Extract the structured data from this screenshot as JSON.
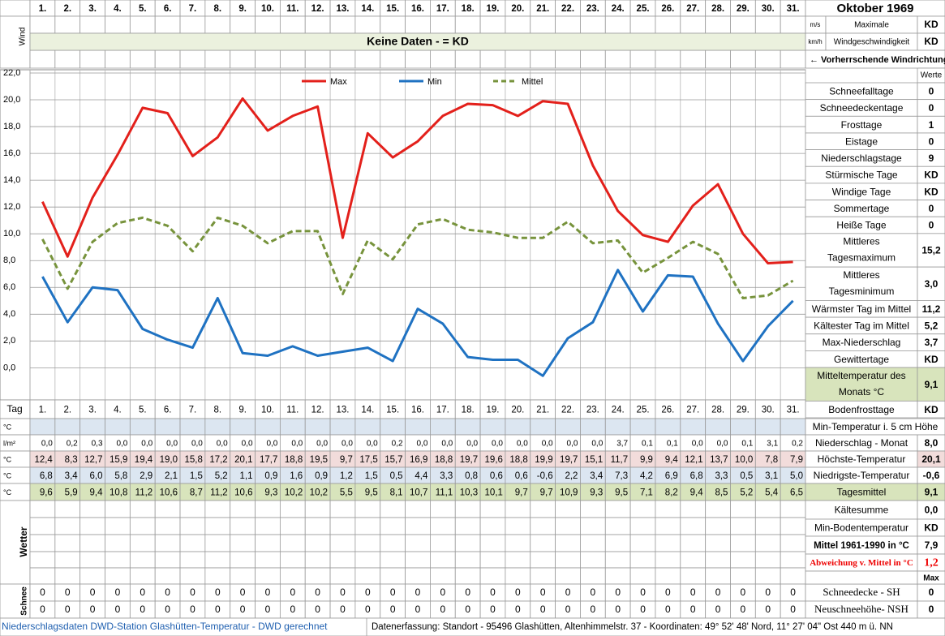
{
  "header": {
    "month": "Oktober 1969",
    "wind_label": "Wind",
    "units": [
      "m/s",
      "km/h"
    ],
    "wind_speed_label": [
      "Maximale",
      "Windgeschwindigkeit"
    ],
    "wind_speed_values": [
      "KD",
      "KD"
    ],
    "no_data": "Keine Daten -  = KD",
    "wind_direction": "← Vorherrschende Windrichtung",
    "values_heading": "Werte"
  },
  "chart_data": {
    "type": "line",
    "categories": [
      "1.",
      "2.",
      "3.",
      "4.",
      "5.",
      "6.",
      "7.",
      "8.",
      "9.",
      "10.",
      "11.",
      "12.",
      "13.",
      "14.",
      "15.",
      "16.",
      "17.",
      "18.",
      "19.",
      "20.",
      "21.",
      "22.",
      "23.",
      "24.",
      "25.",
      "26.",
      "27.",
      "28.",
      "29.",
      "30.",
      "31."
    ],
    "ylim": [
      -2.4,
      22
    ],
    "yticks": [
      {
        "value": 0,
        "label": "0,0"
      },
      {
        "value": 2,
        "label": "2,0"
      },
      {
        "value": 4,
        "label": "4,0"
      },
      {
        "value": 6,
        "label": "6,0"
      },
      {
        "value": 8,
        "label": "8,0"
      },
      {
        "value": 10,
        "label": "10,0"
      },
      {
        "value": 12,
        "label": "12,0"
      },
      {
        "value": 14,
        "label": "14,0"
      },
      {
        "value": 16,
        "label": "16,0"
      },
      {
        "value": 18,
        "label": "18,0"
      },
      {
        "value": 20,
        "label": "20,0"
      },
      {
        "value": 22,
        "label": "22,0"
      }
    ],
    "grid": true,
    "legend": "top",
    "series": [
      {
        "name": "Max",
        "color": "#e3201b",
        "dash": false,
        "values": [
          12.4,
          8.3,
          12.7,
          15.9,
          19.4,
          19.0,
          15.8,
          17.2,
          20.1,
          17.7,
          18.8,
          19.5,
          9.7,
          17.5,
          15.7,
          16.9,
          18.8,
          19.7,
          19.6,
          18.8,
          19.9,
          19.7,
          15.1,
          11.7,
          9.9,
          9.4,
          12.1,
          13.7,
          10.0,
          7.8,
          7.9
        ],
        "value_labels": [
          "12,4",
          "8,3",
          "12,7",
          "15,9",
          "19,4",
          "19,0",
          "15,8",
          "17,2",
          "20,1",
          "17,7",
          "18,8",
          "19,5",
          "9,7",
          "17,5",
          "15,7",
          "16,9",
          "18,8",
          "19,7",
          "19,6",
          "18,8",
          "19,9",
          "19,7",
          "15,1",
          "11,7",
          "9,9",
          "9,4",
          "12,1",
          "13,7",
          "10,0",
          "7,8",
          "7,9"
        ]
      },
      {
        "name": "Min",
        "color": "#1f72c2",
        "dash": false,
        "values": [
          6.8,
          3.4,
          6.0,
          5.8,
          2.9,
          2.1,
          1.5,
          5.2,
          1.1,
          0.9,
          1.6,
          0.9,
          1.2,
          1.5,
          0.5,
          4.4,
          3.3,
          0.8,
          0.6,
          0.6,
          -0.6,
          2.2,
          3.4,
          7.3,
          4.2,
          6.9,
          6.8,
          3.3,
          0.5,
          3.1,
          5.0
        ],
        "value_labels": [
          "6,8",
          "3,4",
          "6,0",
          "5,8",
          "2,9",
          "2,1",
          "1,5",
          "5,2",
          "1,1",
          "0,9",
          "1,6",
          "0,9",
          "1,2",
          "1,5",
          "0,5",
          "4,4",
          "3,3",
          "0,8",
          "0,6",
          "0,6",
          "-0,6",
          "2,2",
          "3,4",
          "7,3",
          "4,2",
          "6,9",
          "6,8",
          "3,3",
          "0,5",
          "3,1",
          "5,0"
        ]
      },
      {
        "name": "Mittel",
        "color": "#77933c",
        "dash": true,
        "values": [
          9.6,
          5.9,
          9.4,
          10.8,
          11.2,
          10.6,
          8.7,
          11.2,
          10.6,
          9.3,
          10.2,
          10.2,
          5.5,
          9.5,
          8.1,
          10.7,
          11.1,
          10.3,
          10.1,
          9.7,
          9.7,
          10.9,
          9.3,
          9.5,
          7.1,
          8.2,
          9.4,
          8.5,
          5.2,
          5.4,
          6.5
        ],
        "value_labels": [
          "9,6",
          "5,9",
          "9,4",
          "10,8",
          "11,2",
          "10,6",
          "8,7",
          "11,2",
          "10,6",
          "9,3",
          "10,2",
          "10,2",
          "5,5",
          "9,5",
          "8,1",
          "10,7",
          "11,1",
          "10,3",
          "10,1",
          "9,7",
          "9,7",
          "10,9",
          "9,3",
          "9,5",
          "7,1",
          "8,2",
          "9,4",
          "8,5",
          "5,2",
          "5,4",
          "6,5"
        ]
      }
    ]
  },
  "stats": [
    {
      "label": "Schneefalltage",
      "value": "0"
    },
    {
      "label": "Schneedeckentage",
      "value": "0"
    },
    {
      "label": "Frosttage",
      "value": "1"
    },
    {
      "label": "Eistage",
      "value": "0"
    },
    {
      "label": "Niederschlagstage",
      "value": "9"
    },
    {
      "label": "Stürmische Tage",
      "value": "KD"
    },
    {
      "label": "Windige Tage",
      "value": "KD"
    },
    {
      "label": "Sommertage",
      "value": "0"
    },
    {
      "label": "Heiße Tage",
      "value": "0"
    },
    {
      "label": [
        "Mittleres",
        "Tagesmaximum"
      ],
      "value": "15,2"
    },
    {
      "label": [
        "Mittleres",
        "Tagesminimum"
      ],
      "value": "3,0"
    },
    {
      "label": "Wärmster Tag im Mittel",
      "value": "11,2"
    },
    {
      "label": "Kältester Tag im Mittel",
      "value": "5,2"
    },
    {
      "label": "Max-Niederschlag",
      "value": "3,7"
    },
    {
      "label": "Gewittertage",
      "value": "KD"
    },
    {
      "label": [
        "Mitteltemperatur des",
        "Monats °C"
      ],
      "value": "9,1"
    },
    {
      "label": "Bodenfrosttage",
      "value": "KD"
    }
  ],
  "table": {
    "day_label": "Tag",
    "rows": [
      {
        "unit": "°C"
      },
      {
        "unit": "l/m²",
        "values": [
          "0,0",
          "0,2",
          "0,3",
          "0,0",
          "0,0",
          "0,0",
          "0,0",
          "0,0",
          "0,0",
          "0,0",
          "0,0",
          "0,0",
          "0,0",
          "0,0",
          "0,2",
          "0,0",
          "0,0",
          "0,0",
          "0,0",
          "0,0",
          "0,0",
          "0,0",
          "0,0",
          "3,7",
          "0,1",
          "0,1",
          "0,0",
          "0,0",
          "0,1",
          "3,1",
          "0,2"
        ]
      },
      {
        "unit": "°C"
      },
      {
        "unit": "°C"
      },
      {
        "unit": "°C"
      }
    ]
  },
  "summary": [
    {
      "label": "Min-Temperatur i. 5 cm Höhe"
    },
    {
      "label": "Niederschlag - Monat",
      "value": "8,0"
    },
    {
      "label": "Höchste-Temperatur",
      "value": "20,1"
    },
    {
      "label": "Niedrigste-Temperatur",
      "value": "-0,6"
    },
    {
      "label": "Tagesmittel",
      "value": "9,1"
    },
    {
      "label": "Kältesumme",
      "value": "0,0"
    },
    {
      "label": "Min-Bodentemperatur",
      "value": "KD"
    },
    {
      "label": "Mittel 1961-1990 in °C",
      "value": "7,9"
    },
    {
      "label": "Abweichung v. Mittel in °C",
      "value": "1,2"
    },
    {
      "value": "Max"
    }
  ],
  "weather_label": "Wetter",
  "snow_label": "Schnee",
  "snow_rows": [
    {
      "label": "Schneedecke -  SH",
      "value": "0",
      "days": [
        0,
        0,
        0,
        0,
        0,
        0,
        0,
        0,
        0,
        0,
        0,
        0,
        0,
        0,
        0,
        0,
        0,
        0,
        0,
        0,
        0,
        0,
        0,
        0,
        0,
        0,
        0,
        0,
        0,
        0,
        0
      ]
    },
    {
      "label": "Neuschneehöhe- NSH",
      "value": "0",
      "days": [
        0,
        0,
        0,
        0,
        0,
        0,
        0,
        0,
        0,
        0,
        0,
        0,
        0,
        0,
        0,
        0,
        0,
        0,
        0,
        0,
        0,
        0,
        0,
        0,
        0,
        0,
        0,
        0,
        0,
        0,
        0
      ]
    }
  ],
  "footer": {
    "left": "Niederschlagsdaten DWD-Station Glashütten-Temperatur -  DWD gerechnet",
    "right": "Datenerfassung: Standort -  95496 Glashütten, Altenhimmelstr. 37 - Koordinaten: 49° 52' 48' Nord,  11° 27' 04\" Ost  440 m ü. NN"
  }
}
